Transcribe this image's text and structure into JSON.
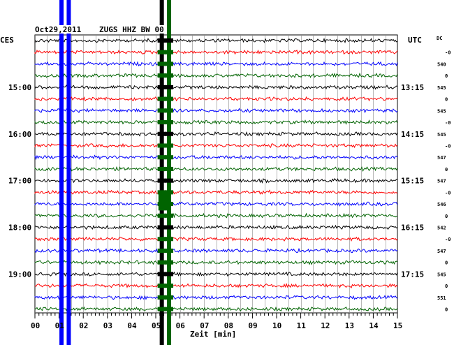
{
  "header": {
    "date": "Oct29,2011",
    "station": "ZUGS HHZ BW 00",
    "left_tz": "CES",
    "right_tz": "UTC",
    "dc_label": "DC"
  },
  "chart_data": {
    "type": "line",
    "title": "Oct29,2011   ZUGS HHZ BW 00",
    "xlabel": "Zeit [min]",
    "xlim": [
      0,
      15
    ],
    "x_ticks": [
      "00",
      "01",
      "02",
      "03",
      "04",
      "05",
      "06",
      "07",
      "08",
      "09",
      "10",
      "11",
      "12",
      "13",
      "14",
      "15"
    ],
    "trace_count": 24,
    "trace_colors": [
      "#000000",
      "#ff0000",
      "#0000ff",
      "#006400"
    ],
    "left_time_labels": [
      {
        "row": 4,
        "label": "15:00"
      },
      {
        "row": 8,
        "label": "16:00"
      },
      {
        "row": 12,
        "label": "17:00"
      },
      {
        "row": 16,
        "label": "18:00"
      },
      {
        "row": 20,
        "label": "19:00"
      }
    ],
    "right_time_labels": [
      {
        "row": 4,
        "label": "13:15"
      },
      {
        "row": 8,
        "label": "14:15"
      },
      {
        "row": 12,
        "label": "15:15"
      },
      {
        "row": 16,
        "label": "16:15"
      },
      {
        "row": 20,
        "label": "17:15"
      }
    ],
    "dc_values": [
      "-0",
      "540",
      "0",
      "545",
      "0",
      "545",
      "-0",
      "545",
      "-0",
      "547",
      "0",
      "547",
      "-0",
      "546",
      "0",
      "542",
      "-0",
      "547",
      "0",
      "545",
      "0",
      "551",
      "0"
    ],
    "events": [
      {
        "x_min": 1.1,
        "color": "#0000ff",
        "note": "vertical saturation band"
      },
      {
        "x_min": 1.4,
        "color": "#0000ff",
        "note": "vertical saturation band"
      },
      {
        "x_min": 5.25,
        "color": "#000000",
        "note": "vertical saturation band"
      },
      {
        "x_min": 5.55,
        "color": "#006400",
        "note": "vertical saturation band"
      }
    ],
    "grid": true
  }
}
